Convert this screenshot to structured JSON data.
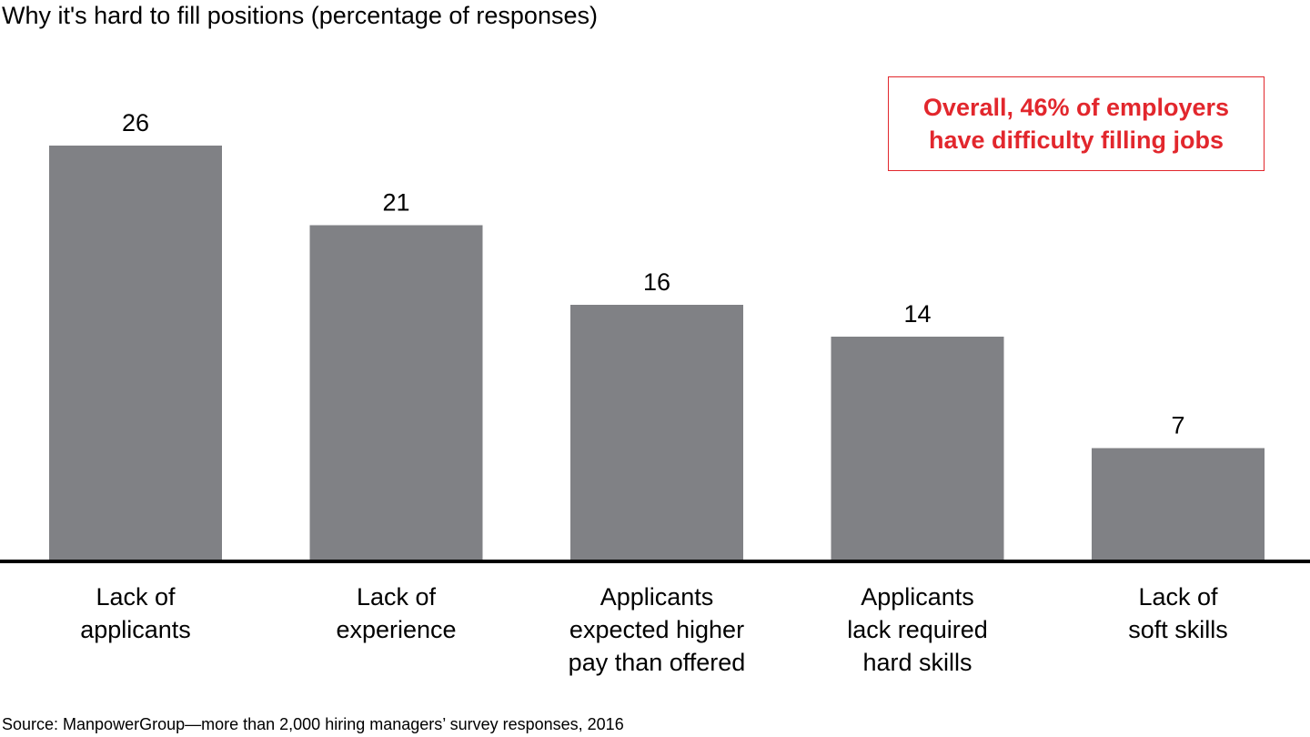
{
  "chart_data": {
    "type": "bar",
    "title": "Why it's hard to fill positions (percentage of responses)",
    "categories": [
      "Lack of\napplicants",
      "Lack of\nexperience",
      "Applicants\nexpected higher\npay than offered",
      "Applicants\nlack required\nhard skills",
      "Lack of\nsoft skills"
    ],
    "values": [
      26,
      21,
      16,
      14,
      7
    ],
    "color": "#808185",
    "annotation": "Overall, 46% of employers\nhave difficulty filling jobs",
    "annotation_color": "#e2272d",
    "source": "Source: ManpowerGroup—more than 2,000 hiring managers’ survey responses, 2016"
  }
}
